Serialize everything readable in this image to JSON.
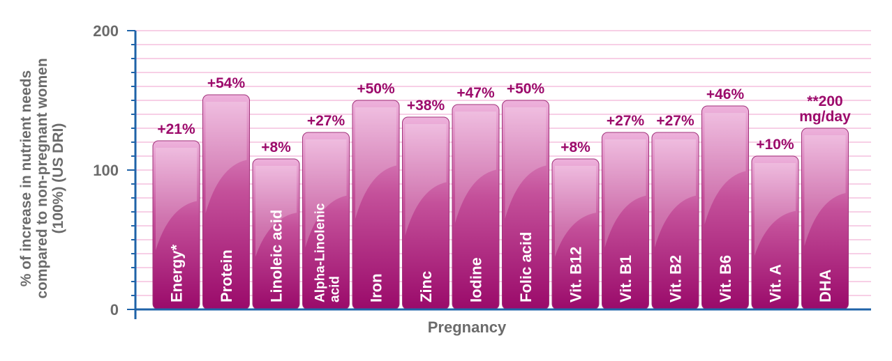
{
  "chart_data": {
    "type": "bar",
    "xlabel": "Pregnancy",
    "ylabel": [
      "% of increase in nutrient needs",
      "compared to non-pregnant women",
      "(100%) (US DRI)"
    ],
    "ylim": [
      0,
      200
    ],
    "yticks": [
      "0",
      "100",
      "200"
    ],
    "grid": true,
    "categories": [
      "Energy*",
      "Protein",
      "Linoleic acid",
      "Alpha-Linolenic acid",
      "Iron",
      "Zinc",
      "Iodine",
      "Folic acid",
      "Vit. B12",
      "Vit. B1",
      "Vit. B2",
      "Vit. B6",
      "Vit. A",
      "DHA"
    ],
    "category_lines": [
      [
        "Energy*"
      ],
      [
        "Protein"
      ],
      [
        "Linoleic acid"
      ],
      [
        "Alpha-Linolenic",
        "acid"
      ],
      [
        "Iron"
      ],
      [
        "Zinc"
      ],
      [
        "Iodine"
      ],
      [
        "Folic acid"
      ],
      [
        "Vit. B12"
      ],
      [
        "Vit. B1"
      ],
      [
        "Vit. B2"
      ],
      [
        "Vit. B6"
      ],
      [
        "Vit. A"
      ],
      [
        "DHA"
      ]
    ],
    "values": [
      121,
      154,
      108,
      127,
      150,
      138,
      147,
      150,
      108,
      127,
      127,
      146,
      110,
      130
    ],
    "data_labels": [
      [
        "+21%"
      ],
      [
        "+54%"
      ],
      [
        "+8%"
      ],
      [
        "+27%"
      ],
      [
        "+50%"
      ],
      [
        "+38%"
      ],
      [
        "+47%"
      ],
      [
        "+50%"
      ],
      [
        "+8%"
      ],
      [
        "+27%"
      ],
      [
        "+27%"
      ],
      [
        "+46%"
      ],
      [
        "+10%"
      ],
      [
        "**200",
        "mg/day"
      ]
    ],
    "colors": {
      "bar_top": "#eeb2dc",
      "bar_mid": "#c4509a",
      "bar_bottom": "#9a0a6a",
      "label": "#9c0a6b",
      "axis": "#1f63a8",
      "grid": "#f7cfe6",
      "text": "#6b6b6b"
    }
  }
}
